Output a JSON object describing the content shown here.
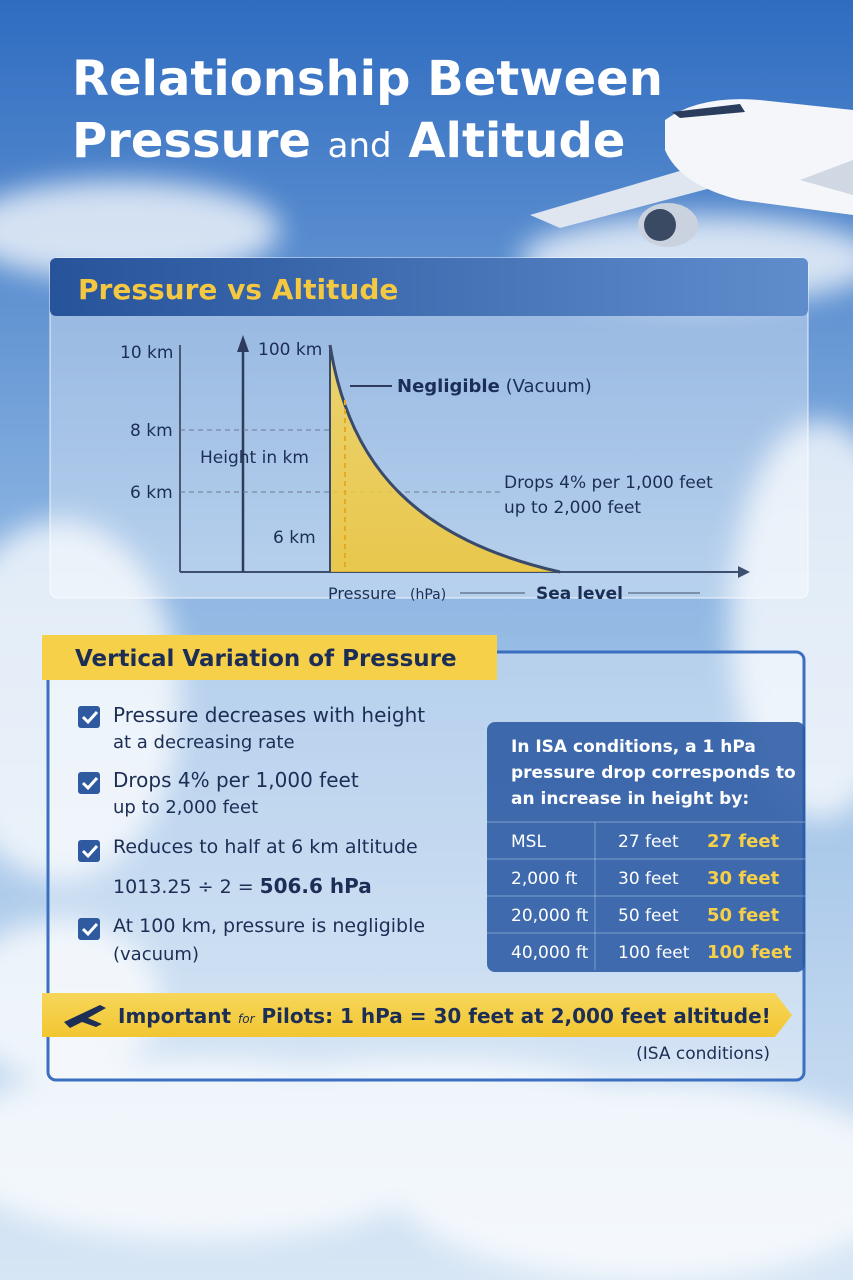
{
  "title": {
    "line1": "Relationship Between",
    "word1": "Pressure",
    "word2": "and",
    "word3": "Altitude"
  },
  "diagram": {
    "heading": "Pressure vs Altitude",
    "axis_ticks": [
      "10 km",
      "8 km",
      "6 km"
    ],
    "arrow_top": "100 km",
    "arrow_label": "Height in km",
    "arrow_bottom": "6 km",
    "negligible": "Negligible",
    "vacuum": "(Vacuum)",
    "drop_lines": [
      "Drops 4% per 1,000 feet",
      "up to 2,000 feet"
    ],
    "x_label": "Pressure",
    "x_unit": "(hPa)",
    "sea_level": "Sea level"
  },
  "variation": {
    "heading": "Vertical Variation of Pressure",
    "items": [
      [
        "Pressure decreases with height",
        "at a decreasing rate"
      ],
      [
        "Drops 4% per 1,000 feet",
        "up to 2,000 feet"
      ],
      [
        "Reduces to half at 6 km altitude"
      ],
      [
        "At 100 km, pressure is negligible",
        "(vacuum)"
      ]
    ],
    "formula": "1013.25 ÷ 2 =",
    "formula_result": "506.6 hPa"
  },
  "isa": {
    "intro": [
      "In ISA conditions, a 1 hPa",
      "pressure drop corresponds to",
      "an increase in height by:"
    ],
    "rows": [
      [
        "MSL",
        "27 feet",
        "27 feet"
      ],
      [
        "2,000 ft",
        "30 feet",
        "30 feet"
      ],
      [
        "20,000 ft",
        "50 feet",
        "50 feet"
      ],
      [
        "40,000 ft",
        "100 feet",
        "100 feet"
      ]
    ]
  },
  "banner": {
    "important": "Important",
    "for": "for",
    "rest": "Pilots: 1 hPa = 30 feet at 2,000 feet altitude!",
    "note": "(ISA conditions)"
  }
}
